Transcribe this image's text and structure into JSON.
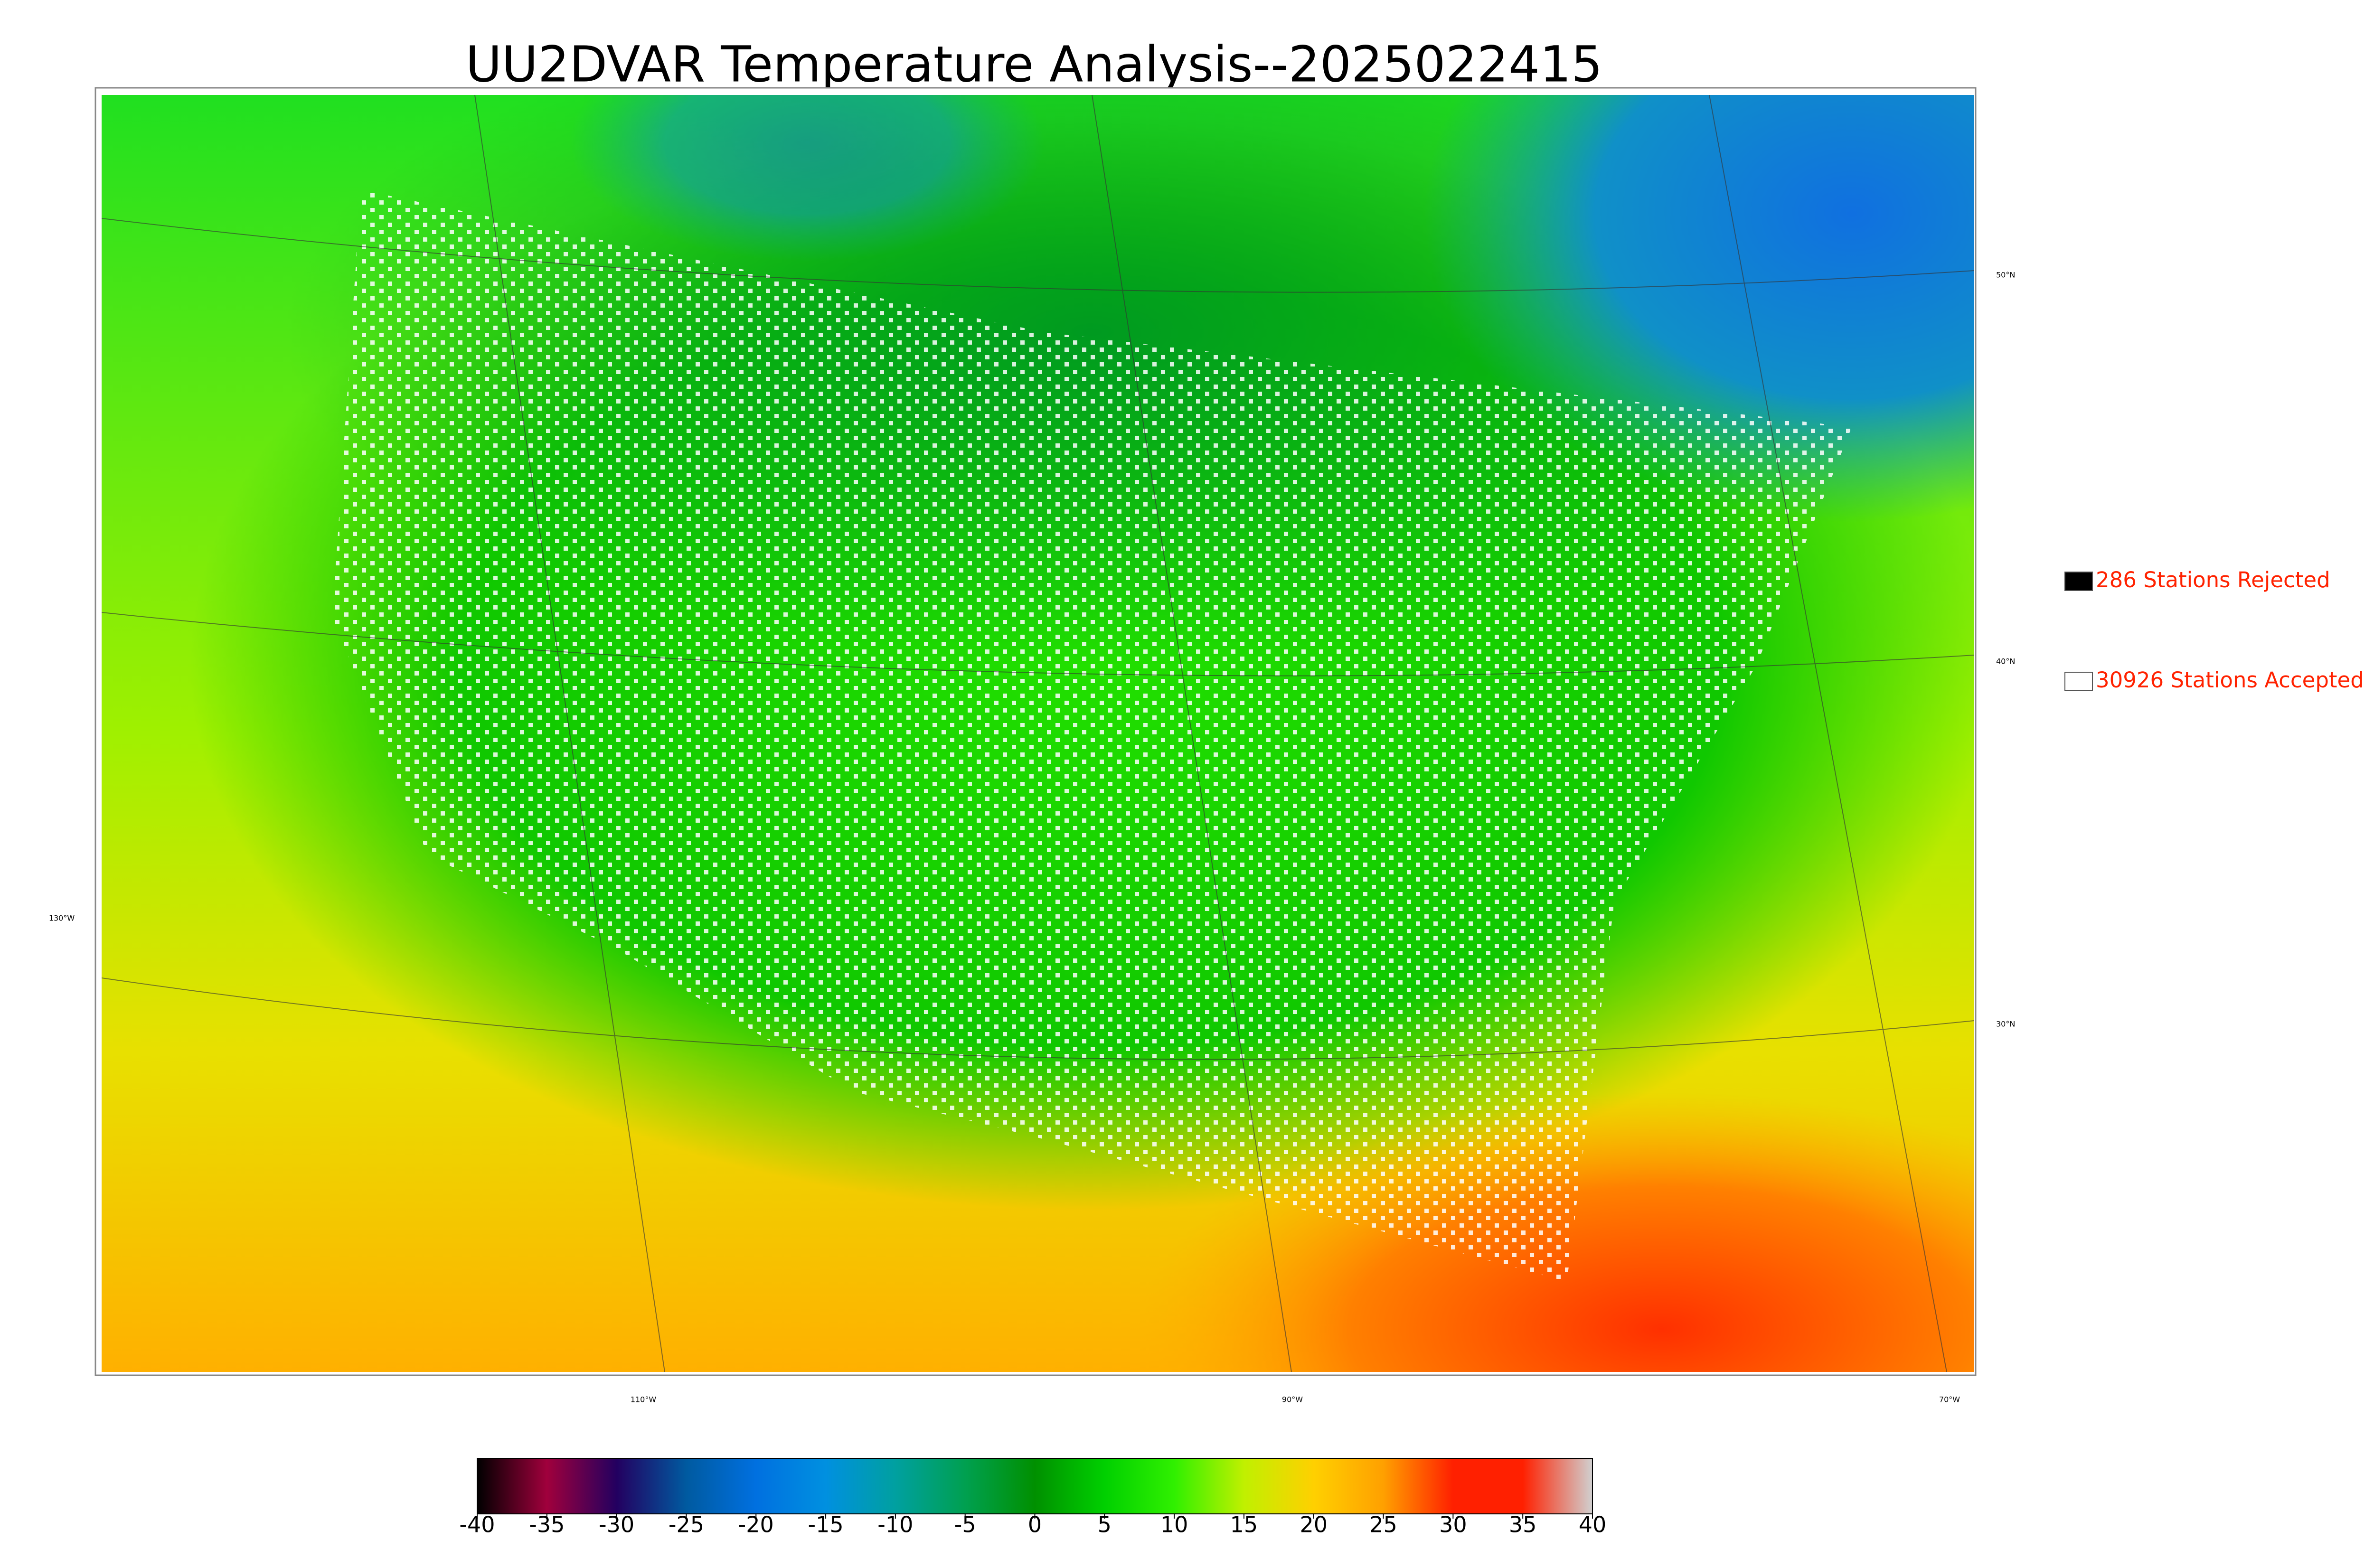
{
  "title": "UU2DVAR Temperature Analysis--2025022415",
  "legend": {
    "text_color": "#ff2200",
    "items": [
      {
        "label": "286 Stations Rejected",
        "color": "#000000"
      },
      {
        "label": "30926 Stations Accepted",
        "color": "#ffffff"
      }
    ]
  },
  "latitude_labels": [
    "50°N",
    "40°N",
    "30°N"
  ],
  "longitude_labels": [
    "130°W",
    "110°W",
    "90°W",
    "70°W"
  ],
  "colorbar": {
    "lim": [
      -40,
      40
    ],
    "ticks": [
      -40,
      -35,
      -30,
      -25,
      -20,
      -15,
      -10,
      -5,
      0,
      5,
      10,
      15,
      20,
      25,
      30,
      35,
      40
    ],
    "colors": [
      "#000000",
      "#a0003c",
      "#230060",
      "#005aa0",
      "#0070e0",
      "#0090e0",
      "#00a0a0",
      "#00a050",
      "#009000",
      "#00d000",
      "#30f000",
      "#c0f000",
      "#ffd000",
      "#ffa000",
      "#ff2000",
      "#ff2000",
      "#d0d0d0"
    ]
  }
}
